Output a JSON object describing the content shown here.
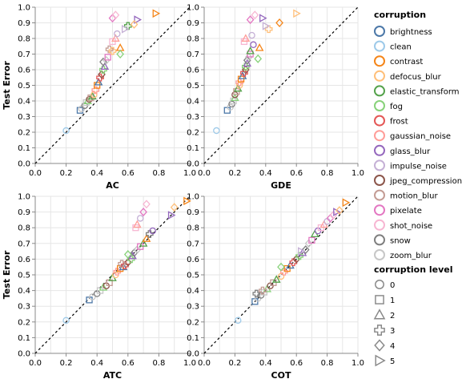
{
  "y_axis_title": "Test Error",
  "tick_labels": [
    "0.0",
    "0.1",
    "0.2",
    "0.3",
    "0.4",
    "0.5",
    "0.6",
    "0.7",
    "0.8",
    "0.9",
    "1.0"
  ],
  "x_tick_labels": [
    "0.0",
    "0.2",
    "0.4",
    "0.6",
    "0.8",
    "1.0"
  ],
  "legend": {
    "corruption_title": "corruption",
    "corruption_items": [
      {
        "name": "brightness",
        "color": "#4c78a8"
      },
      {
        "name": "clean",
        "color": "#9ecae9"
      },
      {
        "name": "contrast",
        "color": "#f58518"
      },
      {
        "name": "defocus_blur",
        "color": "#ffbf79"
      },
      {
        "name": "elastic_transform",
        "color": "#54a24b"
      },
      {
        "name": "fog",
        "color": "#88d27a"
      },
      {
        "name": "frost",
        "color": "#e45756"
      },
      {
        "name": "gaussian_noise",
        "color": "#ff9d98"
      },
      {
        "name": "glass_blur",
        "color": "#9467bd"
      },
      {
        "name": "impulse_noise",
        "color": "#c5b0d5"
      },
      {
        "name": "jpeg_compression",
        "color": "#8c564b"
      },
      {
        "name": "motion_blur",
        "color": "#c49c94"
      },
      {
        "name": "pixelate",
        "color": "#e377c2"
      },
      {
        "name": "shot_noise",
        "color": "#f7b6d2"
      },
      {
        "name": "snow",
        "color": "#7f7f7f"
      },
      {
        "name": "zoom_blur",
        "color": "#c7c7c7"
      }
    ],
    "level_title": "corruption level",
    "level_items": [
      {
        "name": "0",
        "shape": "circle"
      },
      {
        "name": "1",
        "shape": "square"
      },
      {
        "name": "2",
        "shape": "triangle-up"
      },
      {
        "name": "3",
        "shape": "cross"
      },
      {
        "name": "4",
        "shape": "diamond"
      },
      {
        "name": "5",
        "shape": "triangle-right"
      }
    ]
  },
  "chart_data": [
    {
      "type": "scatter",
      "xlabel": "AC",
      "ylabel": "Test Error",
      "xlim": [
        0,
        1
      ],
      "ylim": [
        0,
        1
      ],
      "grid": true,
      "diagonal_reference": true,
      "points": [
        [
          0.2,
          0.21,
          "clean",
          0
        ],
        [
          0.29,
          0.34,
          "brightness",
          1
        ],
        [
          0.3,
          0.35,
          "zoom_blur",
          0
        ],
        [
          0.32,
          0.37,
          "snow",
          0
        ],
        [
          0.33,
          0.39,
          "zoom_blur",
          1
        ],
        [
          0.34,
          0.4,
          "fog",
          2
        ],
        [
          0.35,
          0.41,
          "jpeg_compression",
          0
        ],
        [
          0.36,
          0.42,
          "motion_blur",
          1
        ],
        [
          0.37,
          0.43,
          "elastic_transform",
          2
        ],
        [
          0.38,
          0.44,
          "defocus_blur",
          0
        ],
        [
          0.39,
          0.47,
          "gaussian_noise",
          3
        ],
        [
          0.4,
          0.5,
          "contrast",
          1
        ],
        [
          0.41,
          0.52,
          "brightness",
          2
        ],
        [
          0.42,
          0.55,
          "frost",
          3
        ],
        [
          0.43,
          0.57,
          "jpeg_compression",
          4
        ],
        [
          0.44,
          0.6,
          "fog",
          3
        ],
        [
          0.45,
          0.62,
          "glass_blur",
          2
        ],
        [
          0.44,
          0.65,
          "snow",
          4
        ],
        [
          0.46,
          0.66,
          "zoom_blur",
          4
        ],
        [
          0.47,
          0.68,
          "pixelate",
          1
        ],
        [
          0.48,
          0.73,
          "motion_blur",
          3
        ],
        [
          0.5,
          0.72,
          "defocus_blur",
          3
        ],
        [
          0.5,
          0.78,
          "shot_noise",
          1
        ],
        [
          0.52,
          0.8,
          "gaussian_noise",
          2
        ],
        [
          0.53,
          0.83,
          "impulse_noise",
          0
        ],
        [
          0.55,
          0.74,
          "contrast",
          2
        ],
        [
          0.6,
          0.88,
          "elastic_transform",
          3
        ],
        [
          0.5,
          0.93,
          "pixelate",
          4
        ],
        [
          0.52,
          0.95,
          "shot_noise",
          4
        ],
        [
          0.66,
          0.92,
          "glass_blur",
          5
        ],
        [
          0.78,
          0.96,
          "contrast",
          5
        ],
        [
          0.64,
          0.89,
          "defocus_blur",
          4
        ],
        [
          0.55,
          0.7,
          "fog",
          4
        ],
        [
          0.58,
          0.86,
          "impulse_noise",
          5
        ]
      ]
    },
    {
      "type": "scatter",
      "xlabel": "GDE",
      "ylabel": "",
      "xlim": [
        0,
        1
      ],
      "ylim": [
        0,
        1
      ],
      "grid": true,
      "diagonal_reference": true,
      "points": [
        [
          0.08,
          0.21,
          "clean",
          0
        ],
        [
          0.15,
          0.34,
          "brightness",
          1
        ],
        [
          0.17,
          0.36,
          "zoom_blur",
          0
        ],
        [
          0.18,
          0.38,
          "snow",
          0
        ],
        [
          0.19,
          0.4,
          "zoom_blur",
          1
        ],
        [
          0.2,
          0.42,
          "fog",
          2
        ],
        [
          0.2,
          0.44,
          "jpeg_compression",
          0
        ],
        [
          0.21,
          0.46,
          "motion_blur",
          1
        ],
        [
          0.22,
          0.48,
          "elastic_transform",
          2
        ],
        [
          0.23,
          0.5,
          "defocus_blur",
          0
        ],
        [
          0.23,
          0.52,
          "gaussian_noise",
          3
        ],
        [
          0.24,
          0.54,
          "contrast",
          1
        ],
        [
          0.25,
          0.56,
          "brightness",
          2
        ],
        [
          0.26,
          0.58,
          "frost",
          3
        ],
        [
          0.27,
          0.6,
          "jpeg_compression",
          4
        ],
        [
          0.27,
          0.62,
          "fog",
          3
        ],
        [
          0.28,
          0.64,
          "glass_blur",
          2
        ],
        [
          0.28,
          0.66,
          "snow",
          4
        ],
        [
          0.29,
          0.68,
          "zoom_blur",
          4
        ],
        [
          0.3,
          0.7,
          "pixelate",
          1
        ],
        [
          0.3,
          0.72,
          "elastic_transform",
          2
        ],
        [
          0.32,
          0.76,
          "glass_blur",
          0
        ],
        [
          0.26,
          0.78,
          "shot_noise",
          1
        ],
        [
          0.27,
          0.8,
          "gaussian_noise",
          2
        ],
        [
          0.31,
          0.82,
          "impulse_noise",
          0
        ],
        [
          0.36,
          0.74,
          "contrast",
          2
        ],
        [
          0.42,
          0.86,
          "defocus_blur",
          3
        ],
        [
          0.3,
          0.92,
          "pixelate",
          4
        ],
        [
          0.33,
          0.95,
          "shot_noise",
          4
        ],
        [
          0.38,
          0.93,
          "glass_blur",
          5
        ],
        [
          0.6,
          0.96,
          "defocus_blur",
          5
        ],
        [
          0.49,
          0.9,
          "contrast",
          4
        ],
        [
          0.35,
          0.67,
          "fog",
          4
        ],
        [
          0.4,
          0.88,
          "impulse_noise",
          5
        ]
      ]
    },
    {
      "type": "scatter",
      "xlabel": "ATC",
      "ylabel": "Test Error",
      "xlim": [
        0,
        1
      ],
      "ylim": [
        0,
        1
      ],
      "grid": true,
      "diagonal_reference": true,
      "points": [
        [
          0.2,
          0.21,
          "clean",
          0
        ],
        [
          0.35,
          0.34,
          "brightness",
          1
        ],
        [
          0.37,
          0.36,
          "zoom_blur",
          0
        ],
        [
          0.4,
          0.38,
          "snow",
          0
        ],
        [
          0.42,
          0.4,
          "zoom_blur",
          1
        ],
        [
          0.44,
          0.42,
          "fog",
          2
        ],
        [
          0.46,
          0.43,
          "jpeg_compression",
          0
        ],
        [
          0.48,
          0.45,
          "motion_blur",
          1
        ],
        [
          0.5,
          0.48,
          "elastic_transform",
          2
        ],
        [
          0.52,
          0.5,
          "defocus_blur",
          0
        ],
        [
          0.53,
          0.52,
          "gaussian_noise",
          3
        ],
        [
          0.55,
          0.54,
          "contrast",
          1
        ],
        [
          0.57,
          0.55,
          "brightness",
          2
        ],
        [
          0.58,
          0.56,
          "frost",
          3
        ],
        [
          0.6,
          0.58,
          "jpeg_compression",
          4
        ],
        [
          0.62,
          0.6,
          "fog",
          3
        ],
        [
          0.63,
          0.62,
          "glass_blur",
          2
        ],
        [
          0.64,
          0.64,
          "snow",
          4
        ],
        [
          0.66,
          0.66,
          "zoom_blur",
          4
        ],
        [
          0.68,
          0.68,
          "pixelate",
          1
        ],
        [
          0.7,
          0.7,
          "elastic_transform",
          2
        ],
        [
          0.72,
          0.73,
          "contrast",
          2
        ],
        [
          0.74,
          0.76,
          "snow",
          3
        ],
        [
          0.76,
          0.78,
          "glass_blur",
          0
        ],
        [
          0.65,
          0.8,
          "shot_noise",
          1
        ],
        [
          0.66,
          0.82,
          "gaussian_noise",
          2
        ],
        [
          0.68,
          0.86,
          "impulse_noise",
          0
        ],
        [
          0.7,
          0.9,
          "pixelate",
          4
        ],
        [
          0.72,
          0.95,
          "shot_noise",
          4
        ],
        [
          0.88,
          0.88,
          "glass_blur",
          5
        ],
        [
          0.98,
          0.97,
          "contrast",
          5
        ],
        [
          0.9,
          0.93,
          "defocus_blur",
          4
        ],
        [
          0.56,
          0.57,
          "motion_blur",
          3
        ],
        [
          0.6,
          0.63,
          "fog",
          4
        ]
      ]
    },
    {
      "type": "scatter",
      "xlabel": "COT",
      "ylabel": "",
      "xlim": [
        0,
        1
      ],
      "ylim": [
        0,
        1
      ],
      "grid": true,
      "diagonal_reference": true,
      "points": [
        [
          0.22,
          0.21,
          "clean",
          0
        ],
        [
          0.33,
          0.33,
          "brightness",
          1
        ],
        [
          0.35,
          0.35,
          "zoom_blur",
          0
        ],
        [
          0.37,
          0.37,
          "snow",
          0
        ],
        [
          0.39,
          0.39,
          "zoom_blur",
          1
        ],
        [
          0.41,
          0.41,
          "fog",
          2
        ],
        [
          0.43,
          0.43,
          "jpeg_compression",
          0
        ],
        [
          0.45,
          0.45,
          "motion_blur",
          1
        ],
        [
          0.47,
          0.47,
          "elastic_transform",
          2
        ],
        [
          0.5,
          0.49,
          "defocus_blur",
          0
        ],
        [
          0.52,
          0.52,
          "gaussian_noise",
          3
        ],
        [
          0.54,
          0.54,
          "contrast",
          1
        ],
        [
          0.56,
          0.56,
          "brightness",
          2
        ],
        [
          0.58,
          0.58,
          "frost",
          3
        ],
        [
          0.6,
          0.6,
          "jpeg_compression",
          4
        ],
        [
          0.62,
          0.62,
          "fog",
          3
        ],
        [
          0.64,
          0.64,
          "glass_blur",
          2
        ],
        [
          0.66,
          0.66,
          "snow",
          4
        ],
        [
          0.68,
          0.7,
          "zoom_blur",
          4
        ],
        [
          0.7,
          0.72,
          "pixelate",
          1
        ],
        [
          0.72,
          0.76,
          "elastic_transform",
          2
        ],
        [
          0.74,
          0.78,
          "glass_blur",
          0
        ],
        [
          0.76,
          0.8,
          "shot_noise",
          1
        ],
        [
          0.78,
          0.82,
          "gaussian_noise",
          2
        ],
        [
          0.8,
          0.84,
          "impulse_noise",
          0
        ],
        [
          0.82,
          0.86,
          "pixelate",
          4
        ],
        [
          0.84,
          0.88,
          "shot_noise",
          4
        ],
        [
          0.86,
          0.9,
          "glass_blur",
          5
        ],
        [
          0.92,
          0.96,
          "contrast",
          5
        ],
        [
          0.88,
          0.91,
          "defocus_blur",
          4
        ],
        [
          0.34,
          0.38,
          "snow",
          3
        ],
        [
          0.38,
          0.4,
          "motion_blur",
          3
        ],
        [
          0.5,
          0.55,
          "fog",
          4
        ],
        [
          0.63,
          0.65,
          "impulse_noise",
          5
        ]
      ]
    }
  ]
}
